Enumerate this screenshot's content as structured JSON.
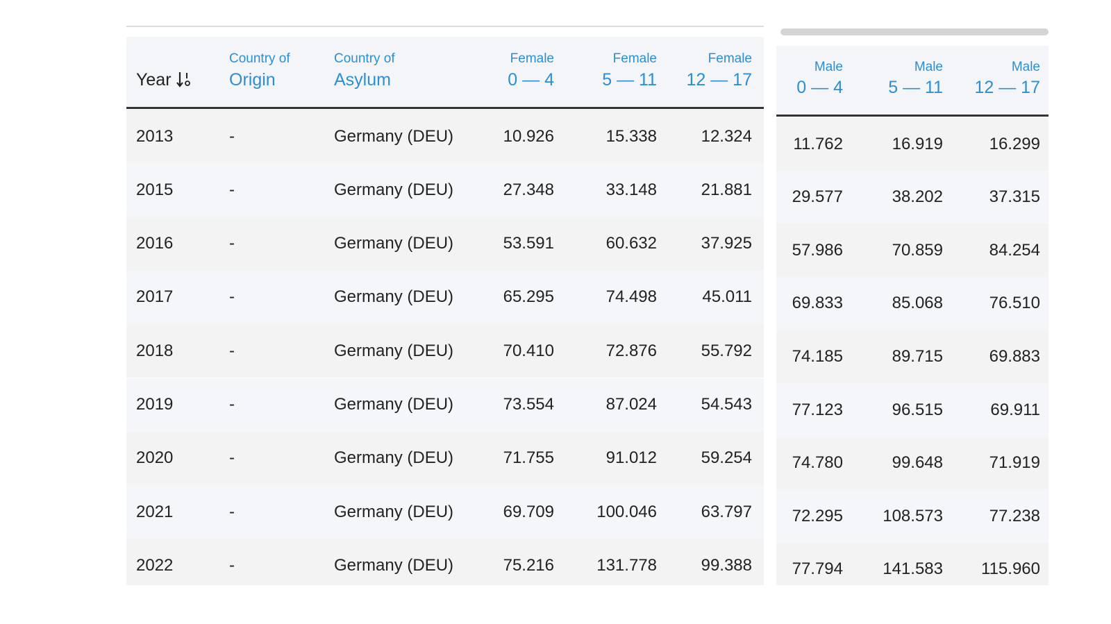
{
  "left_table": {
    "columns": [
      {
        "bottom": "Year"
      },
      {
        "top": "Country of",
        "bottom": "Origin"
      },
      {
        "top": "Country of",
        "bottom": "Asylum"
      },
      {
        "top": "Female",
        "bottom": "0 — 4"
      },
      {
        "top": "Female",
        "bottom": "5 — 11"
      },
      {
        "top": "Female",
        "bottom": "12 — 17"
      }
    ],
    "rows": [
      [
        "2013",
        "-",
        "Germany (DEU)",
        "10.926",
        "15.338",
        "12.324"
      ],
      [
        "2015",
        "-",
        "Germany (DEU)",
        "27.348",
        "33.148",
        "21.881"
      ],
      [
        "2016",
        "-",
        "Germany (DEU)",
        "53.591",
        "60.632",
        "37.925"
      ],
      [
        "2017",
        "-",
        "Germany (DEU)",
        "65.295",
        "74.498",
        "45.011"
      ],
      [
        "2018",
        "-",
        "Germany (DEU)",
        "70.410",
        "72.876",
        "55.792"
      ],
      [
        "2019",
        "-",
        "Germany (DEU)",
        "73.554",
        "87.024",
        "54.543"
      ],
      [
        "2020",
        "-",
        "Germany (DEU)",
        "71.755",
        "91.012",
        "59.254"
      ],
      [
        "2021",
        "-",
        "Germany (DEU)",
        "69.709",
        "100.046",
        "63.797"
      ],
      [
        "2022",
        "-",
        "Germany (DEU)",
        "75.216",
        "131.778",
        "99.388"
      ]
    ]
  },
  "right_table": {
    "columns": [
      {
        "top": "Male",
        "bottom": "0 — 4"
      },
      {
        "top": "Male",
        "bottom": "5 — 11"
      },
      {
        "top": "Male",
        "bottom": "12 — 17"
      }
    ],
    "rows": [
      [
        "11.762",
        "16.919",
        "16.299"
      ],
      [
        "29.577",
        "38.202",
        "37.315"
      ],
      [
        "57.986",
        "70.859",
        "84.254"
      ],
      [
        "69.833",
        "85.068",
        "76.510"
      ],
      [
        "74.185",
        "89.715",
        "69.883"
      ],
      [
        "77.123",
        "96.515",
        "69.911"
      ],
      [
        "74.780",
        "99.648",
        "71.919"
      ],
      [
        "72.295",
        "108.573",
        "77.238"
      ],
      [
        "77.794",
        "141.583",
        "115.960"
      ]
    ]
  }
}
